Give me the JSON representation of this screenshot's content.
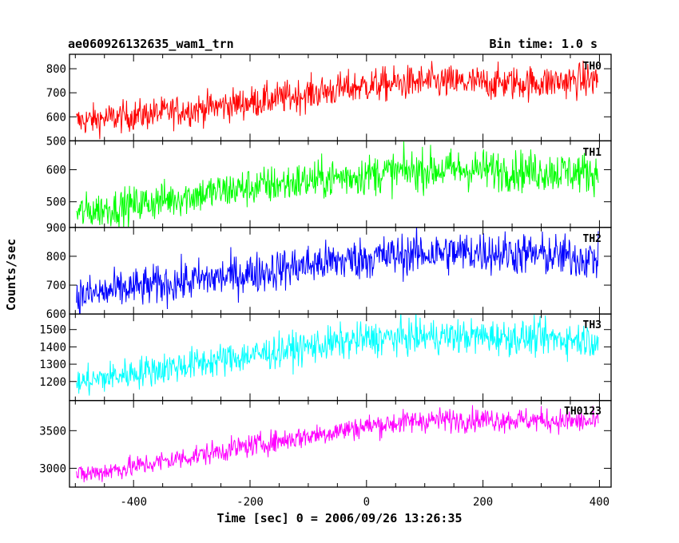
{
  "header": {
    "title": "ae060926132635_wam1_trn",
    "bin_time": "Bin time: 1.0 s"
  },
  "axes": {
    "xlabel": "Time [sec] 0 = 2006/09/26 13:26:35",
    "ylabel": "Counts/sec"
  },
  "chart_data": {
    "type": "line",
    "title": "ae060926132635_wam1_trn",
    "subtitle": "Bin time: 1.0 s",
    "xlabel": "Time [sec] 0 = 2006/09/26 13:26:35",
    "ylabel": "Counts/sec",
    "xlim": [
      -510,
      420
    ],
    "xticks": [
      -400,
      -200,
      0,
      200,
      400
    ],
    "grid": false,
    "panels": [
      {
        "name": "TH0",
        "color": "#ff0000",
        "ylim": [
          500,
          860
        ],
        "yticks": [
          500,
          600,
          700,
          800
        ],
        "x": [
          -500,
          -400,
          -300,
          -200,
          -100,
          0,
          100,
          200,
          300,
          400
        ],
        "values": [
          580,
          605,
          630,
          660,
          695,
          730,
          745,
          740,
          742,
          755
        ]
      },
      {
        "name": "TH1",
        "color": "#00ff00",
        "ylim": [
          420,
          690
        ],
        "yticks": [
          500,
          600
        ],
        "x": [
          -500,
          -400,
          -300,
          -200,
          -100,
          0,
          100,
          200,
          300,
          400
        ],
        "values": [
          465,
          490,
          520,
          545,
          565,
          585,
          600,
          600,
          595,
          590
        ]
      },
      {
        "name": "TH2",
        "color": "#0000ff",
        "ylim": [
          600,
          900
        ],
        "yticks": [
          600,
          700,
          800,
          900
        ],
        "x": [
          -500,
          -400,
          -300,
          -200,
          -100,
          0,
          100,
          200,
          300,
          400
        ],
        "values": [
          660,
          690,
          715,
          740,
          770,
          795,
          810,
          815,
          805,
          790
        ]
      },
      {
        "name": "TH3",
        "color": "#00ffff",
        "ylim": [
          1090,
          1590
        ],
        "yticks": [
          1200,
          1300,
          1400,
          1500
        ],
        "x": [
          -500,
          -400,
          -300,
          -200,
          -100,
          0,
          100,
          200,
          300,
          400
        ],
        "values": [
          1190,
          1250,
          1300,
          1350,
          1400,
          1445,
          1460,
          1460,
          1450,
          1440
        ]
      },
      {
        "name": "TH0123",
        "color": "#ff00ff",
        "ylim": [
          2750,
          3900
        ],
        "yticks": [
          3000,
          3500
        ],
        "x": [
          -500,
          -400,
          -300,
          -200,
          -100,
          0,
          100,
          200,
          300,
          400
        ],
        "values": [
          2900,
          3020,
          3160,
          3300,
          3430,
          3560,
          3640,
          3650,
          3640,
          3610
        ]
      }
    ]
  }
}
